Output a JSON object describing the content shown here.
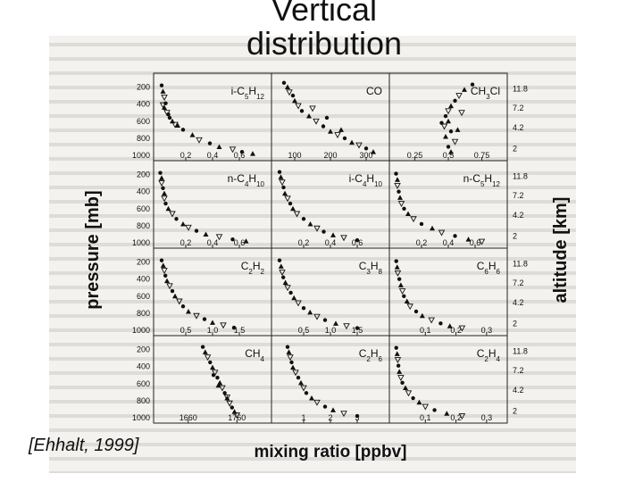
{
  "slide": {
    "title": "Vertical distribution",
    "citation": "[Ehhalt, 1999]"
  },
  "chart_data": {
    "type": "scatter",
    "xlabel": "mixing ratio [ppbv]",
    "ylabel": "pressure [mb]",
    "y2label": "altitude [km]",
    "pressure_ticks": [
      200,
      400,
      600,
      800,
      1000
    ],
    "altitude_ticks": [
      "11.8",
      "7.2",
      "4.2",
      "2"
    ],
    "panels": [
      {
        "species": "i-C5H12",
        "xticks": [
          "0.2",
          "0.4",
          "0.6"
        ],
        "xlim": [
          0,
          0.8
        ],
        "points": [
          [
            0.02,
            180
          ],
          [
            0.03,
            250
          ],
          [
            0.04,
            320
          ],
          [
            0.05,
            390
          ],
          [
            0.04,
            440
          ],
          [
            0.06,
            500
          ],
          [
            0.08,
            560
          ],
          [
            0.1,
            600
          ],
          [
            0.12,
            640
          ],
          [
            0.18,
            700
          ],
          [
            0.25,
            760
          ],
          [
            0.3,
            820
          ],
          [
            0.38,
            860
          ],
          [
            0.45,
            900
          ],
          [
            0.55,
            930
          ],
          [
            0.62,
            960
          ],
          [
            0.7,
            980
          ],
          [
            0.03,
            410
          ],
          [
            0.07,
            520
          ],
          [
            0.14,
            650
          ]
        ]
      },
      {
        "species": "CO",
        "xticks": [
          "100",
          "200",
          "300"
        ],
        "xlim": [
          50,
          350
        ],
        "points": [
          [
            70,
            150
          ],
          [
            80,
            200
          ],
          [
            85,
            260
          ],
          [
            95,
            300
          ],
          [
            100,
            360
          ],
          [
            110,
            420
          ],
          [
            120,
            480
          ],
          [
            140,
            540
          ],
          [
            160,
            600
          ],
          [
            180,
            660
          ],
          [
            200,
            720
          ],
          [
            220,
            760
          ],
          [
            240,
            800
          ],
          [
            260,
            850
          ],
          [
            280,
            880
          ],
          [
            300,
            920
          ],
          [
            320,
            960
          ],
          [
            150,
            450
          ],
          [
            190,
            560
          ],
          [
            230,
            700
          ]
        ]
      },
      {
        "species": "CH3Cl",
        "xticks": [
          "0.25",
          "0.5",
          "0.75"
        ],
        "xlim": [
          0.1,
          0.9
        ],
        "points": [
          [
            0.68,
            170
          ],
          [
            0.62,
            230
          ],
          [
            0.58,
            300
          ],
          [
            0.55,
            360
          ],
          [
            0.52,
            420
          ],
          [
            0.5,
            480
          ],
          [
            0.48,
            540
          ],
          [
            0.5,
            600
          ],
          [
            0.47,
            660
          ],
          [
            0.52,
            720
          ],
          [
            0.48,
            780
          ],
          [
            0.55,
            840
          ],
          [
            0.5,
            900
          ],
          [
            0.52,
            960
          ],
          [
            0.6,
            500
          ],
          [
            0.45,
            620
          ],
          [
            0.57,
            700
          ]
        ]
      },
      {
        "species": "n-C4H10",
        "xticks": [
          "0.2",
          "0.4",
          "0.6"
        ],
        "xlim": [
          0,
          0.8
        ],
        "points": [
          [
            0.01,
            180
          ],
          [
            0.02,
            240
          ],
          [
            0.02,
            300
          ],
          [
            0.03,
            360
          ],
          [
            0.04,
            420
          ],
          [
            0.04,
            480
          ],
          [
            0.05,
            540
          ],
          [
            0.07,
            600
          ],
          [
            0.1,
            660
          ],
          [
            0.13,
            720
          ],
          [
            0.18,
            780
          ],
          [
            0.22,
            820
          ],
          [
            0.28,
            860
          ],
          [
            0.35,
            900
          ],
          [
            0.45,
            930
          ],
          [
            0.55,
            960
          ],
          [
            0.65,
            980
          ]
        ]
      },
      {
        "species": "i-C4H10",
        "xticks": [
          "0.2",
          "0.4",
          "0.6"
        ],
        "xlim": [
          0,
          0.8
        ],
        "points": [
          [
            0.02,
            170
          ],
          [
            0.03,
            230
          ],
          [
            0.04,
            290
          ],
          [
            0.05,
            350
          ],
          [
            0.06,
            420
          ],
          [
            0.08,
            480
          ],
          [
            0.1,
            540
          ],
          [
            0.12,
            600
          ],
          [
            0.15,
            660
          ],
          [
            0.2,
            720
          ],
          [
            0.25,
            780
          ],
          [
            0.3,
            830
          ],
          [
            0.35,
            870
          ],
          [
            0.42,
            910
          ],
          [
            0.5,
            940
          ],
          [
            0.6,
            970
          ]
        ]
      },
      {
        "species": "n-C5H12",
        "xticks": [
          "0.2",
          "0.4",
          "0.6"
        ],
        "xlim": [
          0,
          0.8
        ],
        "points": [
          [
            0.01,
            190
          ],
          [
            0.02,
            260
          ],
          [
            0.02,
            330
          ],
          [
            0.03,
            400
          ],
          [
            0.04,
            470
          ],
          [
            0.05,
            540
          ],
          [
            0.07,
            600
          ],
          [
            0.1,
            660
          ],
          [
            0.14,
            720
          ],
          [
            0.2,
            780
          ],
          [
            0.28,
            830
          ],
          [
            0.35,
            880
          ],
          [
            0.45,
            920
          ],
          [
            0.55,
            960
          ],
          [
            0.65,
            985
          ]
        ]
      },
      {
        "species": "C2H2",
        "xticks": [
          "0.5",
          "1.0",
          "1.5"
        ],
        "xlim": [
          0,
          2
        ],
        "points": [
          [
            0.05,
            180
          ],
          [
            0.08,
            240
          ],
          [
            0.1,
            300
          ],
          [
            0.12,
            360
          ],
          [
            0.15,
            420
          ],
          [
            0.2,
            480
          ],
          [
            0.25,
            540
          ],
          [
            0.3,
            600
          ],
          [
            0.38,
            660
          ],
          [
            0.45,
            720
          ],
          [
            0.55,
            780
          ],
          [
            0.7,
            830
          ],
          [
            0.85,
            870
          ],
          [
            1.0,
            910
          ],
          [
            1.2,
            940
          ],
          [
            1.4,
            970
          ]
        ]
      },
      {
        "species": "C3H8",
        "xticks": [
          "0.5",
          "1.0",
          "1.5"
        ],
        "xlim": [
          0,
          2
        ],
        "points": [
          [
            0.05,
            180
          ],
          [
            0.08,
            250
          ],
          [
            0.1,
            320
          ],
          [
            0.12,
            380
          ],
          [
            0.16,
            440
          ],
          [
            0.2,
            500
          ],
          [
            0.26,
            560
          ],
          [
            0.32,
            620
          ],
          [
            0.4,
            680
          ],
          [
            0.5,
            740
          ],
          [
            0.62,
            790
          ],
          [
            0.75,
            840
          ],
          [
            0.9,
            880
          ],
          [
            1.1,
            920
          ],
          [
            1.3,
            950
          ],
          [
            1.5,
            975
          ]
        ]
      },
      {
        "species": "C6H6",
        "xticks": [
          "0.1",
          "0.2",
          "0.3"
        ],
        "xlim": [
          0,
          0.35
        ],
        "points": [
          [
            0.005,
            190
          ],
          [
            0.008,
            260
          ],
          [
            0.01,
            330
          ],
          [
            0.015,
            400
          ],
          [
            0.02,
            470
          ],
          [
            0.025,
            540
          ],
          [
            0.03,
            600
          ],
          [
            0.04,
            660
          ],
          [
            0.05,
            720
          ],
          [
            0.07,
            780
          ],
          [
            0.09,
            830
          ],
          [
            0.12,
            880
          ],
          [
            0.15,
            920
          ],
          [
            0.18,
            950
          ],
          [
            0.22,
            975
          ]
        ]
      },
      {
        "species": "CH4",
        "xticks": [
          "1660",
          "1760"
        ],
        "xlim": [
          1600,
          1820
        ],
        "points": [
          [
            1690,
            170
          ],
          [
            1695,
            230
          ],
          [
            1700,
            290
          ],
          [
            1705,
            350
          ],
          [
            1710,
            410
          ],
          [
            1715,
            470
          ],
          [
            1720,
            530
          ],
          [
            1725,
            590
          ],
          [
            1730,
            650
          ],
          [
            1735,
            710
          ],
          [
            1740,
            770
          ],
          [
            1745,
            830
          ],
          [
            1750,
            880
          ],
          [
            1755,
            930
          ],
          [
            1760,
            970
          ],
          [
            1712,
            500
          ],
          [
            1722,
            620
          ],
          [
            1740,
            760
          ]
        ]
      },
      {
        "species": "C2H6",
        "xticks": [
          "1",
          "2",
          "3"
        ],
        "xlim": [
          0,
          4
        ],
        "points": [
          [
            0.4,
            170
          ],
          [
            0.45,
            230
          ],
          [
            0.5,
            290
          ],
          [
            0.55,
            350
          ],
          [
            0.6,
            410
          ],
          [
            0.7,
            470
          ],
          [
            0.8,
            530
          ],
          [
            0.9,
            590
          ],
          [
            1.0,
            650
          ],
          [
            1.1,
            710
          ],
          [
            1.3,
            770
          ],
          [
            1.5,
            820
          ],
          [
            1.8,
            870
          ],
          [
            2.1,
            910
          ],
          [
            2.5,
            950
          ],
          [
            3.0,
            980
          ]
        ]
      },
      {
        "species": "C2H4",
        "xticks": [
          "0.1",
          "0.2",
          "0.3"
        ],
        "xlim": [
          0,
          0.35
        ],
        "points": [
          [
            0.005,
            180
          ],
          [
            0.008,
            250
          ],
          [
            0.01,
            320
          ],
          [
            0.012,
            390
          ],
          [
            0.015,
            460
          ],
          [
            0.02,
            530
          ],
          [
            0.025,
            590
          ],
          [
            0.035,
            650
          ],
          [
            0.045,
            710
          ],
          [
            0.06,
            770
          ],
          [
            0.08,
            820
          ],
          [
            0.1,
            870
          ],
          [
            0.13,
            910
          ],
          [
            0.17,
            950
          ],
          [
            0.22,
            980
          ]
        ]
      }
    ]
  }
}
